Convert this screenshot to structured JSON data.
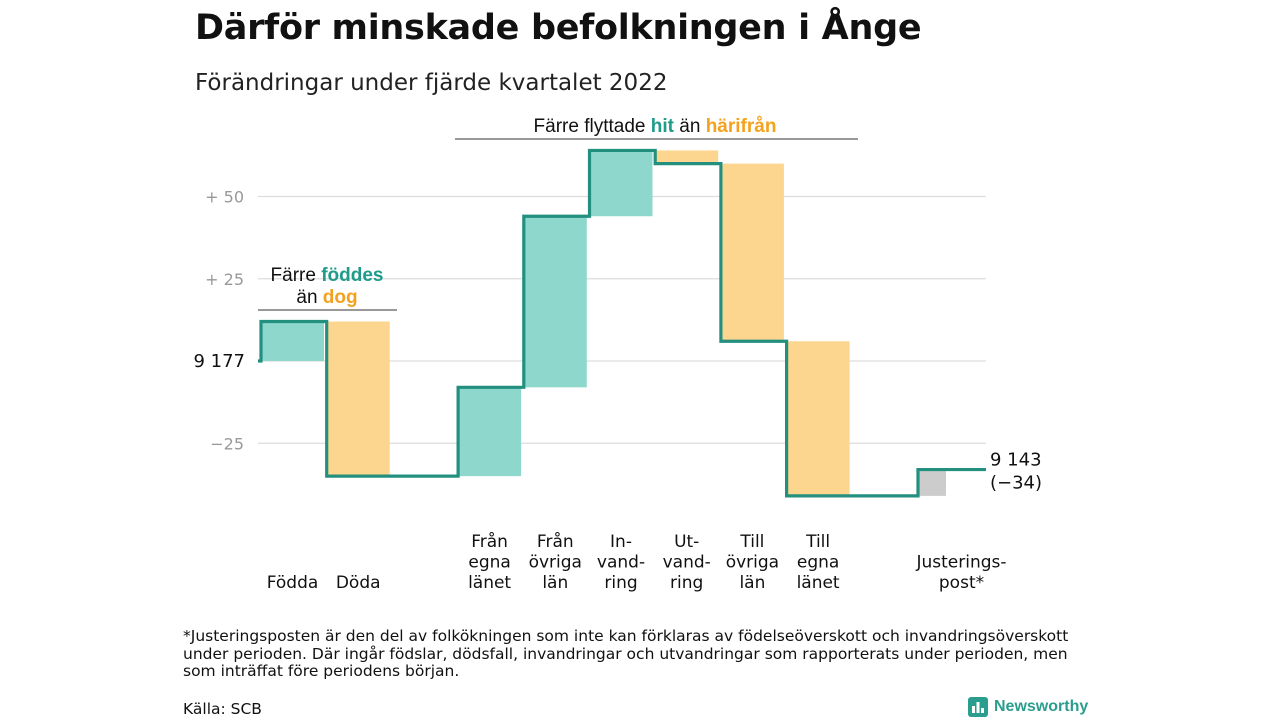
{
  "title": "Därför minskade befolkningen i Ånge",
  "subtitle": "Förändringar under fjärde kvartalet 2022",
  "footnote": "*Justeringsposten är den del av folkökningen som inte kan förklaras av födelseöverskott och invandringsöverskott under perioden. Där ingår födslar, dödsfall, invandringar och utvandringar som rapporterats under perioden, men som inträffat före periodens början.",
  "source": "Källa: SCB",
  "brand": "Newsworthy",
  "colors": {
    "increase": "#8dd7cc",
    "decrease": "#fcd68e",
    "adjustment": "#cccccc",
    "line": "#23907f",
    "teal_text": "#1f9b8a",
    "orange_text": "#f4a21e",
    "grid": "#dddddd"
  },
  "chart_data": {
    "type": "waterfall",
    "start": {
      "value": 9177,
      "label": "9 177"
    },
    "end": {
      "value": 9143,
      "label": "9 143",
      "change_label": "(−34)"
    },
    "baseline": 9177,
    "ylim": [
      -40,
      70
    ],
    "yticks": [
      {
        "value": 50,
        "label": "+ 50"
      },
      {
        "value": 25,
        "label": "+ 25"
      },
      {
        "value": -25,
        "label": "−25"
      }
    ],
    "steps": [
      {
        "label_lines": [
          "Födda"
        ],
        "change": 12,
        "kind": "increase"
      },
      {
        "label_lines": [
          "Döda"
        ],
        "change": -47,
        "kind": "decrease"
      },
      {
        "label_lines": [
          "",
          ""
        ],
        "change": 0,
        "kind": "gap"
      },
      {
        "label_lines": [
          "Från",
          "egna",
          "länet"
        ],
        "change": 27,
        "kind": "increase"
      },
      {
        "label_lines": [
          "Från",
          "övriga",
          "län"
        ],
        "change": 52,
        "kind": "increase"
      },
      {
        "label_lines": [
          "In-",
          "vand-",
          "ring"
        ],
        "change": 20,
        "kind": "increase"
      },
      {
        "label_lines": [
          "Ut-",
          "vand-",
          "ring"
        ],
        "change": -4,
        "kind": "decrease"
      },
      {
        "label_lines": [
          "Till",
          "övriga",
          "län"
        ],
        "change": -54,
        "kind": "decrease"
      },
      {
        "label_lines": [
          "Till",
          "egna",
          "länet"
        ],
        "change": -47,
        "kind": "decrease"
      },
      {
        "label_lines": [
          "",
          ""
        ],
        "change": 0,
        "kind": "gap"
      },
      {
        "label_lines": [
          "Justerings-",
          "post*"
        ],
        "change": 8,
        "kind": "adjustment"
      }
    ],
    "annotations": [
      {
        "id": "birth",
        "line1": [
          "Färre ",
          "föddes"
        ],
        "line2": [
          "än ",
          "dog"
        ]
      },
      {
        "id": "migration",
        "line1": [
          "Färre flyttade ",
          "hit",
          " än ",
          "härifrån"
        ]
      }
    ]
  }
}
